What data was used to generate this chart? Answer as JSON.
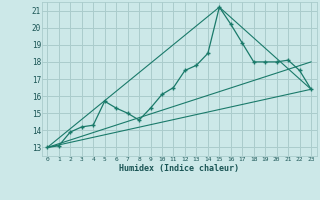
{
  "xlabel": "Humidex (Indice chaleur)",
  "background_color": "#cce8e8",
  "grid_color": "#aacccc",
  "line_color": "#1a7a6a",
  "xlim": [
    -0.5,
    23.5
  ],
  "ylim": [
    12.5,
    21.5
  ],
  "xticks": [
    0,
    1,
    2,
    3,
    4,
    5,
    6,
    7,
    8,
    9,
    10,
    11,
    12,
    13,
    14,
    15,
    16,
    17,
    18,
    19,
    20,
    21,
    22,
    23
  ],
  "yticks": [
    13,
    14,
    15,
    16,
    17,
    18,
    19,
    20,
    21
  ],
  "line1_x": [
    0,
    1,
    2,
    3,
    4,
    5,
    6,
    7,
    8,
    9,
    10,
    11,
    12,
    13,
    14,
    15,
    16,
    17,
    18,
    19,
    20,
    21,
    22,
    23
  ],
  "line1_y": [
    13.0,
    13.1,
    13.9,
    14.2,
    14.3,
    15.7,
    15.3,
    15.0,
    14.6,
    15.3,
    16.1,
    16.5,
    17.5,
    17.8,
    18.5,
    21.2,
    20.2,
    19.1,
    18.0,
    18.0,
    18.0,
    18.1,
    17.5,
    16.4
  ],
  "line2_x": [
    0,
    23
  ],
  "line2_y": [
    13.0,
    16.4
  ],
  "line3_x": [
    0,
    15,
    23
  ],
  "line3_y": [
    13.0,
    21.2,
    16.4
  ],
  "line4_x": [
    0,
    23
  ],
  "line4_y": [
    13.0,
    18.0
  ]
}
